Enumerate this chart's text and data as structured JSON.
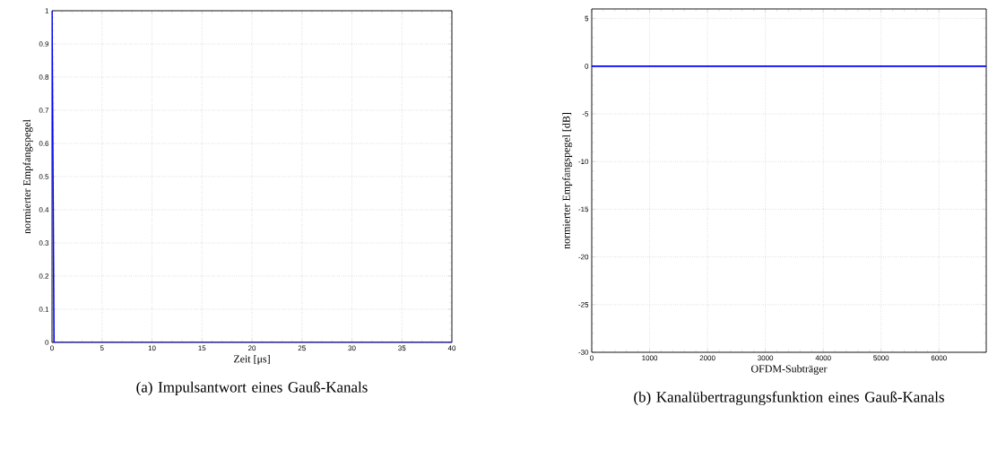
{
  "chart_data": [
    {
      "type": "line",
      "title": "(a) Impulsantwort eines Gauß-Kanals",
      "xlabel": "Zeit [μs]",
      "ylabel": "normierter Empfangspegel",
      "x": [
        0,
        0.2,
        40
      ],
      "series": [
        {
          "color": "#0000ff",
          "values": [
            1,
            0,
            0
          ]
        }
      ],
      "xlim": [
        0,
        40
      ],
      "ylim": [
        0,
        1
      ],
      "xticks": [
        0,
        5,
        10,
        15,
        20,
        25,
        30,
        35,
        40
      ],
      "yticks": [
        0,
        0.1,
        0.2,
        0.3,
        0.4,
        0.5,
        0.6,
        0.7,
        0.8,
        0.9,
        1
      ],
      "grid": true
    },
    {
      "type": "line",
      "title": "(b) Kanalübertragungsfunktion eines Gauß-Kanals",
      "xlabel": "OFDM-Subträger",
      "ylabel": "normierter Empfangspegel [dB]",
      "x": [
        0,
        6817
      ],
      "series": [
        {
          "color": "#0000ff",
          "values": [
            0,
            0
          ]
        }
      ],
      "xlim": [
        0,
        6817
      ],
      "ylim": [
        -30,
        6
      ],
      "xticks": [
        0,
        1000,
        2000,
        3000,
        4000,
        5000,
        6000
      ],
      "yticks": [
        -30,
        -25,
        -20,
        -15,
        -10,
        -5,
        0,
        5
      ],
      "grid": true
    }
  ]
}
